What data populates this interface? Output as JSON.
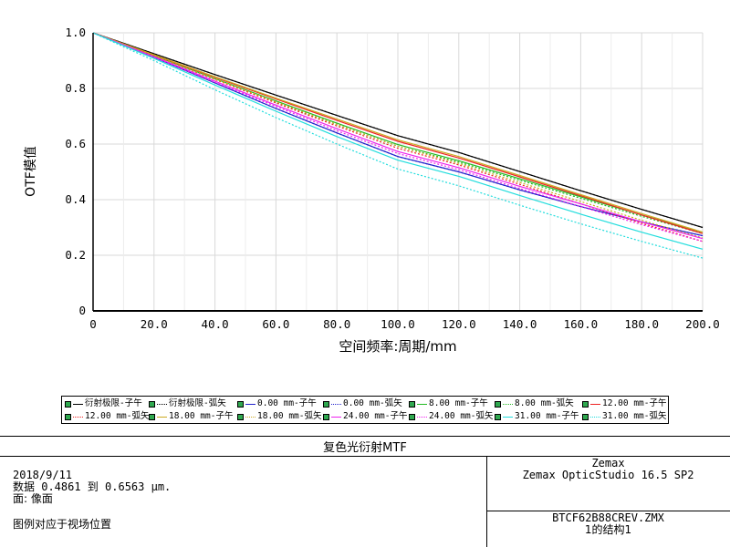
{
  "chart_data": {
    "type": "line",
    "title": "复色光衍射MTF",
    "xlabel": "空间频率:周期/mm",
    "ylabel": "OTF模值",
    "xlim": [
      0,
      200
    ],
    "ylim": [
      0,
      1
    ],
    "x_ticks": [
      "0",
      "20.0",
      "40.0",
      "60.0",
      "80.0",
      "100.0",
      "120.0",
      "140.0",
      "160.0",
      "180.0",
      "200.0"
    ],
    "y_ticks": [
      "0",
      "0.2",
      "0.4",
      "0.6",
      "0.8",
      "1.0"
    ],
    "grid": true,
    "x": [
      0,
      20,
      40,
      60,
      80,
      100,
      120,
      140,
      160,
      180,
      200
    ],
    "series": [
      {
        "name": "衍射极限-子午",
        "color": "#000000",
        "dash": "solid",
        "values": [
          1.0,
          0.925,
          0.85,
          0.776,
          0.703,
          0.63,
          0.57,
          0.501,
          0.432,
          0.365,
          0.3
        ]
      },
      {
        "name": "衍射极限-弧矢",
        "color": "#000000",
        "dash": "dotted",
        "values": [
          1.0,
          0.925,
          0.85,
          0.776,
          0.703,
          0.63,
          0.57,
          0.501,
          0.432,
          0.365,
          0.3
        ]
      },
      {
        "name": "0.00 mm-子午",
        "color": "#2222cc",
        "dash": "solid",
        "values": [
          1.0,
          0.912,
          0.82,
          0.728,
          0.64,
          0.555,
          0.5,
          0.435,
          0.375,
          0.32,
          0.27
        ]
      },
      {
        "name": "0.00 mm-弧矢",
        "color": "#2222cc",
        "dash": "dotted",
        "values": [
          1.0,
          0.912,
          0.82,
          0.728,
          0.64,
          0.555,
          0.5,
          0.435,
          0.375,
          0.32,
          0.27
        ]
      },
      {
        "name": "8.00 mm-子午",
        "color": "#22bb22",
        "dash": "solid",
        "values": [
          1.0,
          0.918,
          0.835,
          0.755,
          0.675,
          0.598,
          0.54,
          0.475,
          0.41,
          0.345,
          0.283
        ]
      },
      {
        "name": "8.00 mm-弧矢",
        "color": "#22bb22",
        "dash": "dotted",
        "values": [
          1.0,
          0.918,
          0.833,
          0.75,
          0.67,
          0.592,
          0.535,
          0.47,
          0.405,
          0.34,
          0.278
        ]
      },
      {
        "name": "12.00 mm-子午",
        "color": "#ee2222",
        "dash": "solid",
        "values": [
          1.0,
          0.92,
          0.84,
          0.762,
          0.685,
          0.61,
          0.55,
          0.482,
          0.414,
          0.345,
          0.278
        ]
      },
      {
        "name": "12.00 mm-弧矢",
        "color": "#ee2222",
        "dash": "dotted",
        "values": [
          1.0,
          0.916,
          0.832,
          0.748,
          0.665,
          0.585,
          0.525,
          0.455,
          0.385,
          0.315,
          0.25
        ]
      },
      {
        "name": "18.00 mm-子午",
        "color": "#ccaa22",
        "dash": "solid",
        "values": [
          1.0,
          0.921,
          0.842,
          0.765,
          0.69,
          0.615,
          0.555,
          0.487,
          0.418,
          0.35,
          0.283
        ]
      },
      {
        "name": "18.00 mm-弧矢",
        "color": "#ccaa22",
        "dash": "dotted",
        "values": [
          1.0,
          0.917,
          0.834,
          0.752,
          0.67,
          0.592,
          0.53,
          0.462,
          0.393,
          0.326,
          0.262
        ]
      },
      {
        "name": "24.00 mm-子午",
        "color": "#ee22ee",
        "dash": "solid",
        "values": [
          1.0,
          0.914,
          0.826,
          0.74,
          0.655,
          0.573,
          0.515,
          0.448,
          0.385,
          0.32,
          0.26
        ]
      },
      {
        "name": "24.00 mm-弧矢",
        "color": "#ee22ee",
        "dash": "dotted",
        "values": [
          1.0,
          0.912,
          0.822,
          0.735,
          0.648,
          0.566,
          0.508,
          0.44,
          0.375,
          0.31,
          0.25
        ]
      },
      {
        "name": "31.00 mm-子午",
        "color": "#22dddd",
        "dash": "solid",
        "values": [
          1.0,
          0.908,
          0.812,
          0.718,
          0.627,
          0.542,
          0.484,
          0.415,
          0.348,
          0.283,
          0.222
        ]
      },
      {
        "name": "31.00 mm-弧矢",
        "color": "#22dddd",
        "dash": "dotted",
        "values": [
          1.0,
          0.9,
          0.795,
          0.695,
          0.6,
          0.51,
          0.45,
          0.38,
          0.313,
          0.25,
          0.19
        ]
      }
    ]
  },
  "info": {
    "date": "2018/9/11",
    "data_line": "数据 0.4861 到 0.6563 μm.",
    "surface_line": "面: 像面",
    "legend_note": "图例对应于视场位置",
    "company": "Zemax",
    "software": "Zemax OpticStudio 16.5 SP2",
    "filename": "BTCF62B88CREV.ZMX",
    "config": "1的结构1"
  }
}
